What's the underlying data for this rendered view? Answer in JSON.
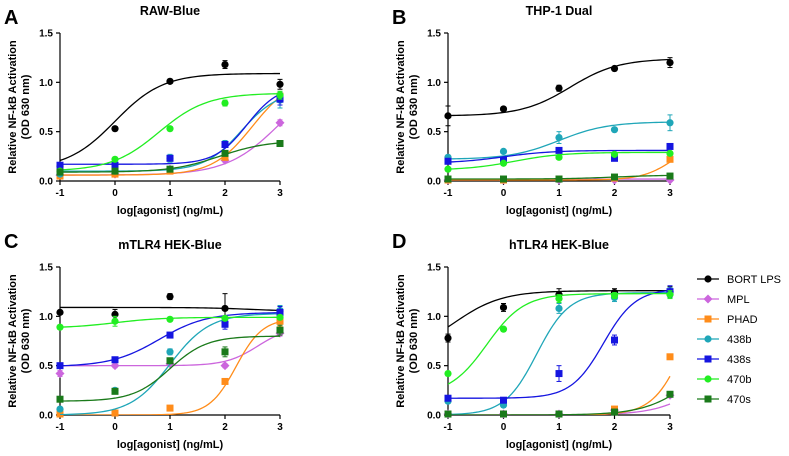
{
  "chart_data": [
    {
      "type": "scatter",
      "panel_label": "A",
      "title": "RAW-Blue",
      "xlabel": "log[agonist] (ng/mL)",
      "ylabel": "Relative NF-kB Activation (OD 630 nm)",
      "ylabel_lines": [
        "Relative NF-kB Activation",
        "(OD 630 nm)"
      ],
      "xlim": [
        -1,
        3
      ],
      "ylim": [
        0,
        1.5
      ],
      "xticks": [
        "-1",
        "0",
        "1",
        "2",
        "3"
      ],
      "yticks": [
        "0.0",
        "0.5",
        "1.0",
        "1.5"
      ],
      "x": [
        -1,
        0,
        1,
        2,
        3
      ],
      "series": [
        {
          "name": "BORT LPS",
          "values": [
            0.15,
            0.53,
            1.01,
            1.18,
            0.98
          ],
          "errors": [
            0.02,
            0.02,
            0.02,
            0.04,
            0.05
          ],
          "fit": {
            "bottom": 0.12,
            "top": 1.09,
            "ec50": 0.0,
            "hill": 1.0
          }
        },
        {
          "name": "MPL",
          "values": [
            0.06,
            0.07,
            0.12,
            0.21,
            0.59
          ],
          "errors": [
            0.01,
            0.01,
            0.02,
            0.02,
            0.03
          ],
          "fit": {
            "bottom": 0.06,
            "top": 1.1,
            "ec50": 3.0,
            "hill": 0.9
          }
        },
        {
          "name": "PHAD",
          "values": [
            0.05,
            0.07,
            0.1,
            0.24,
            0.86
          ],
          "errors": [
            0.01,
            0.01,
            0.01,
            0.02,
            0.04
          ],
          "fit": {
            "bottom": 0.06,
            "top": 1.05,
            "ec50": 2.5,
            "hill": 1.2
          }
        },
        {
          "name": "438b",
          "values": [
            0.07,
            0.1,
            0.23,
            0.38,
            0.82
          ],
          "errors": [
            0.01,
            0.01,
            0.04,
            0.03,
            0.08
          ],
          "fit": {
            "bottom": 0.1,
            "top": 0.92,
            "ec50": 2.3,
            "hill": 1.3
          }
        },
        {
          "name": "438s",
          "values": [
            0.16,
            0.16,
            0.23,
            0.37,
            0.83
          ],
          "errors": [
            0.01,
            0.01,
            0.02,
            0.02,
            0.06
          ],
          "fit": {
            "bottom": 0.17,
            "top": 0.97,
            "ec50": 2.4,
            "hill": 1.5
          }
        },
        {
          "name": "470b",
          "values": [
            0.1,
            0.22,
            0.53,
            0.79,
            0.87
          ],
          "errors": [
            0.01,
            0.02,
            0.02,
            0.03,
            0.04
          ],
          "fit": {
            "bottom": 0.1,
            "top": 0.89,
            "ec50": 0.8,
            "hill": 1.0
          }
        },
        {
          "name": "470s",
          "values": [
            0.09,
            0.1,
            0.12,
            0.28,
            0.38
          ],
          "errors": [
            0.01,
            0.01,
            0.02,
            0.02,
            0.03
          ],
          "fit": {
            "bottom": 0.09,
            "top": 0.41,
            "ec50": 1.9,
            "hill": 1.0
          }
        }
      ]
    },
    {
      "type": "scatter",
      "panel_label": "B",
      "title": "THP-1 Dual",
      "xlabel": "log[agonist] (ng/mL)",
      "ylabel": "Relative NF-kB Activation (OD 630 nm)",
      "ylabel_lines": [
        "Relative NF-kB Activation",
        "(OD 630 nm)"
      ],
      "xlim": [
        -1,
        3
      ],
      "ylim": [
        0,
        1.5
      ],
      "xticks": [
        "-1",
        "0",
        "1",
        "2",
        "3"
      ],
      "yticks": [
        "0.0",
        "0.5",
        "1.0",
        "1.5"
      ],
      "x": [
        -1,
        0,
        1,
        2,
        3
      ],
      "series": [
        {
          "name": "BORT LPS",
          "values": [
            0.66,
            0.73,
            0.94,
            1.14,
            1.2
          ],
          "errors": [
            0.1,
            0.02,
            0.03,
            0.02,
            0.05
          ],
          "fit": {
            "bottom": 0.66,
            "top": 1.24,
            "ec50": 1.2,
            "hill": 1.0
          }
        },
        {
          "name": "MPL",
          "values": [
            0.01,
            0.01,
            0.01,
            0.01,
            0.01
          ],
          "errors": [
            0.003,
            0.003,
            0.003,
            0.003,
            0.003
          ],
          "fit": {
            "bottom": 0.01,
            "top": 0.02,
            "ec50": 1.0,
            "hill": 1.0
          }
        },
        {
          "name": "PHAD",
          "values": [
            0.01,
            0.01,
            0.02,
            0.03,
            0.22
          ],
          "errors": [
            0.003,
            0.003,
            0.003,
            0.005,
            0.02
          ],
          "fit": {
            "bottom": 0.01,
            "top": 0.45,
            "ec50": 3.1,
            "hill": 1.5
          }
        },
        {
          "name": "438b",
          "values": [
            0.24,
            0.3,
            0.44,
            0.52,
            0.59
          ],
          "errors": [
            0.02,
            0.02,
            0.06,
            0.02,
            0.08
          ],
          "fit": {
            "bottom": 0.22,
            "top": 0.6,
            "ec50": 1.0,
            "hill": 1.0
          }
        },
        {
          "name": "438s",
          "values": [
            0.2,
            0.21,
            0.31,
            0.23,
            0.35
          ],
          "errors": [
            0.02,
            0.02,
            0.02,
            0.01,
            0.02
          ],
          "fit": {
            "bottom": 0.18,
            "top": 0.31,
            "ec50": 0.0,
            "hill": 1.0
          }
        },
        {
          "name": "470b",
          "values": [
            0.12,
            0.18,
            0.24,
            0.27,
            0.28
          ],
          "errors": [
            0.01,
            0.01,
            0.02,
            0.01,
            0.01
          ],
          "fit": {
            "bottom": 0.11,
            "top": 0.29,
            "ec50": 0.2,
            "hill": 1.0
          }
        },
        {
          "name": "470s",
          "values": [
            0.02,
            0.02,
            0.02,
            0.04,
            0.05
          ],
          "errors": [
            0.003,
            0.003,
            0.003,
            0.005,
            0.005
          ],
          "fit": {
            "bottom": 0.02,
            "top": 0.06,
            "ec50": 2.0,
            "hill": 1.0
          }
        }
      ]
    },
    {
      "type": "scatter",
      "panel_label": "C",
      "title": "mTLR4 HEK-Blue",
      "xlabel": "log[agonist] (ng/mL)",
      "ylabel": "Relative NF-kB Activation (OD 630 nm)",
      "ylabel_lines": [
        "Relative NF-kB Activation",
        "(OD 630 nm)"
      ],
      "xlim": [
        -1,
        3
      ],
      "ylim": [
        0,
        1.5
      ],
      "xticks": [
        "-1",
        "0",
        "1",
        "2",
        "3"
      ],
      "yticks": [
        "0.0",
        "0.5",
        "1.0",
        "1.5"
      ],
      "x": [
        -1,
        0,
        1,
        2,
        3
      ],
      "series": [
        {
          "name": "BORT LPS",
          "values": [
            1.04,
            1.02,
            1.2,
            1.08,
            1.05
          ],
          "errors": [
            0.02,
            0.05,
            0.03,
            0.15,
            0.05
          ],
          "fit": {
            "bottom": 1.09,
            "top": 1.05,
            "ec50": 2.5,
            "hill": 1.0
          }
        },
        {
          "name": "MPL",
          "values": [
            0.42,
            0.5,
            0.52,
            0.5,
            0.83
          ],
          "errors": [
            0.03,
            0.02,
            0.02,
            0.02,
            0.03
          ],
          "fit": {
            "bottom": 0.5,
            "top": 0.9,
            "ec50": 2.6,
            "hill": 1.5
          }
        },
        {
          "name": "PHAD",
          "values": [
            0.01,
            0.02,
            0.07,
            0.34,
            0.95
          ],
          "errors": [
            0.003,
            0.003,
            0.005,
            0.02,
            0.05
          ],
          "fit": {
            "bottom": 0.0,
            "top": 0.98,
            "ec50": 2.2,
            "hill": 1.8
          }
        },
        {
          "name": "438b",
          "values": [
            0.06,
            0.25,
            0.64,
            0.94,
            1.06
          ],
          "errors": [
            0.01,
            0.01,
            0.03,
            0.05,
            0.05
          ],
          "fit": {
            "bottom": 0.0,
            "top": 1.03,
            "ec50": 1.0,
            "hill": 1.2
          }
        },
        {
          "name": "438s",
          "values": [
            0.5,
            0.56,
            0.81,
            0.92,
            1.04
          ],
          "errors": [
            0.02,
            0.02,
            0.02,
            0.05,
            0.06
          ],
          "fit": {
            "bottom": 0.49,
            "top": 1.04,
            "ec50": 0.8,
            "hill": 1.0
          }
        },
        {
          "name": "470b",
          "values": [
            0.89,
            0.95,
            0.97,
            0.98,
            0.99
          ],
          "errors": [
            0.02,
            0.05,
            0.02,
            0.02,
            0.02
          ],
          "fit": {
            "bottom": 0.88,
            "top": 0.99,
            "ec50": 0.0,
            "hill": 1.0
          }
        },
        {
          "name": "470s",
          "values": [
            0.16,
            0.24,
            0.55,
            0.64,
            0.86
          ],
          "errors": [
            0.01,
            0.02,
            0.02,
            0.05,
            0.05
          ],
          "fit": {
            "bottom": 0.14,
            "top": 0.8,
            "ec50": 1.0,
            "hill": 1.3
          }
        }
      ]
    },
    {
      "type": "scatter",
      "panel_label": "D",
      "title": "hTLR4 HEK-Blue",
      "xlabel": "log[agonist] (ng/mL)",
      "ylabel": "Relative NF-kB Activation (OD 630 nm)",
      "ylabel_lines": [
        "Relative NF-kB Activation",
        "(OD 630 nm)"
      ],
      "xlim": [
        -1,
        3
      ],
      "ylim": [
        0,
        1.5
      ],
      "xticks": [
        "-1",
        "0",
        "1",
        "2",
        "3"
      ],
      "yticks": [
        "0.0",
        "0.5",
        "1.0",
        "1.5"
      ],
      "x": [
        -1,
        0,
        1,
        2,
        3
      ],
      "series": [
        {
          "name": "BORT LPS",
          "values": [
            0.78,
            1.09,
            1.22,
            1.24,
            1.25
          ],
          "errors": [
            0.04,
            0.04,
            0.06,
            0.04,
            0.05
          ],
          "fit": {
            "bottom": 0.6,
            "top": 1.26,
            "ec50": -0.9,
            "hill": 1.0
          }
        },
        {
          "name": "MPL",
          "values": [
            0.01,
            0.01,
            0.01,
            0.05,
            0.2
          ],
          "errors": [
            0.003,
            0.003,
            0.003,
            0.005,
            0.01
          ],
          "fit": {
            "bottom": 0.0,
            "top": 1.0,
            "ec50": 3.9,
            "hill": 1.0
          }
        },
        {
          "name": "PHAD",
          "values": [
            0.01,
            0.01,
            0.01,
            0.06,
            0.59
          ],
          "errors": [
            0.003,
            0.003,
            0.003,
            0.005,
            0.02
          ],
          "fit": {
            "bottom": 0.0,
            "top": 1.5,
            "ec50": 3.3,
            "hill": 1.5
          }
        },
        {
          "name": "438b",
          "values": [
            0.14,
            0.1,
            1.08,
            1.19,
            1.24
          ],
          "errors": [
            0.02,
            0.02,
            0.05,
            0.04,
            0.05
          ],
          "fit": {
            "bottom": 0.0,
            "top": 1.24,
            "ec50": 0.6,
            "hill": 1.5
          }
        },
        {
          "name": "438s",
          "values": [
            0.17,
            0.15,
            0.42,
            0.76,
            1.25
          ],
          "errors": [
            0.01,
            0.01,
            0.08,
            0.05,
            0.06
          ],
          "fit": {
            "bottom": 0.17,
            "top": 1.28,
            "ec50": 1.8,
            "hill": 1.5
          }
        },
        {
          "name": "470b",
          "values": [
            0.42,
            0.87,
            1.18,
            1.21,
            1.22
          ],
          "errors": [
            0.02,
            0.02,
            0.04,
            0.03,
            0.04
          ],
          "fit": {
            "bottom": 0.2,
            "top": 1.23,
            "ec50": -0.3,
            "hill": 1.3
          }
        },
        {
          "name": "470s",
          "values": [
            0.01,
            0.01,
            0.01,
            0.03,
            0.21
          ],
          "errors": [
            0.003,
            0.003,
            0.003,
            0.005,
            0.01
          ],
          "fit": {
            "bottom": 0.0,
            "top": 0.8,
            "ec50": 3.5,
            "hill": 1.0
          }
        }
      ]
    }
  ],
  "legend": {
    "placement": "right-of-panel-D",
    "entries": [
      {
        "name": "BORT LPS",
        "color": "#000000",
        "marker": "circle"
      },
      {
        "name": "MPL",
        "color": "#cc66dd",
        "marker": "diamond"
      },
      {
        "name": "PHAD",
        "color": "#ff8c1a",
        "marker": "square"
      },
      {
        "name": "438b",
        "color": "#1fa6b8",
        "marker": "circle"
      },
      {
        "name": "438s",
        "color": "#1515e0",
        "marker": "square"
      },
      {
        "name": "470b",
        "color": "#22ee22",
        "marker": "circle"
      },
      {
        "name": "470s",
        "color": "#1a7a1a",
        "marker": "square"
      }
    ]
  }
}
